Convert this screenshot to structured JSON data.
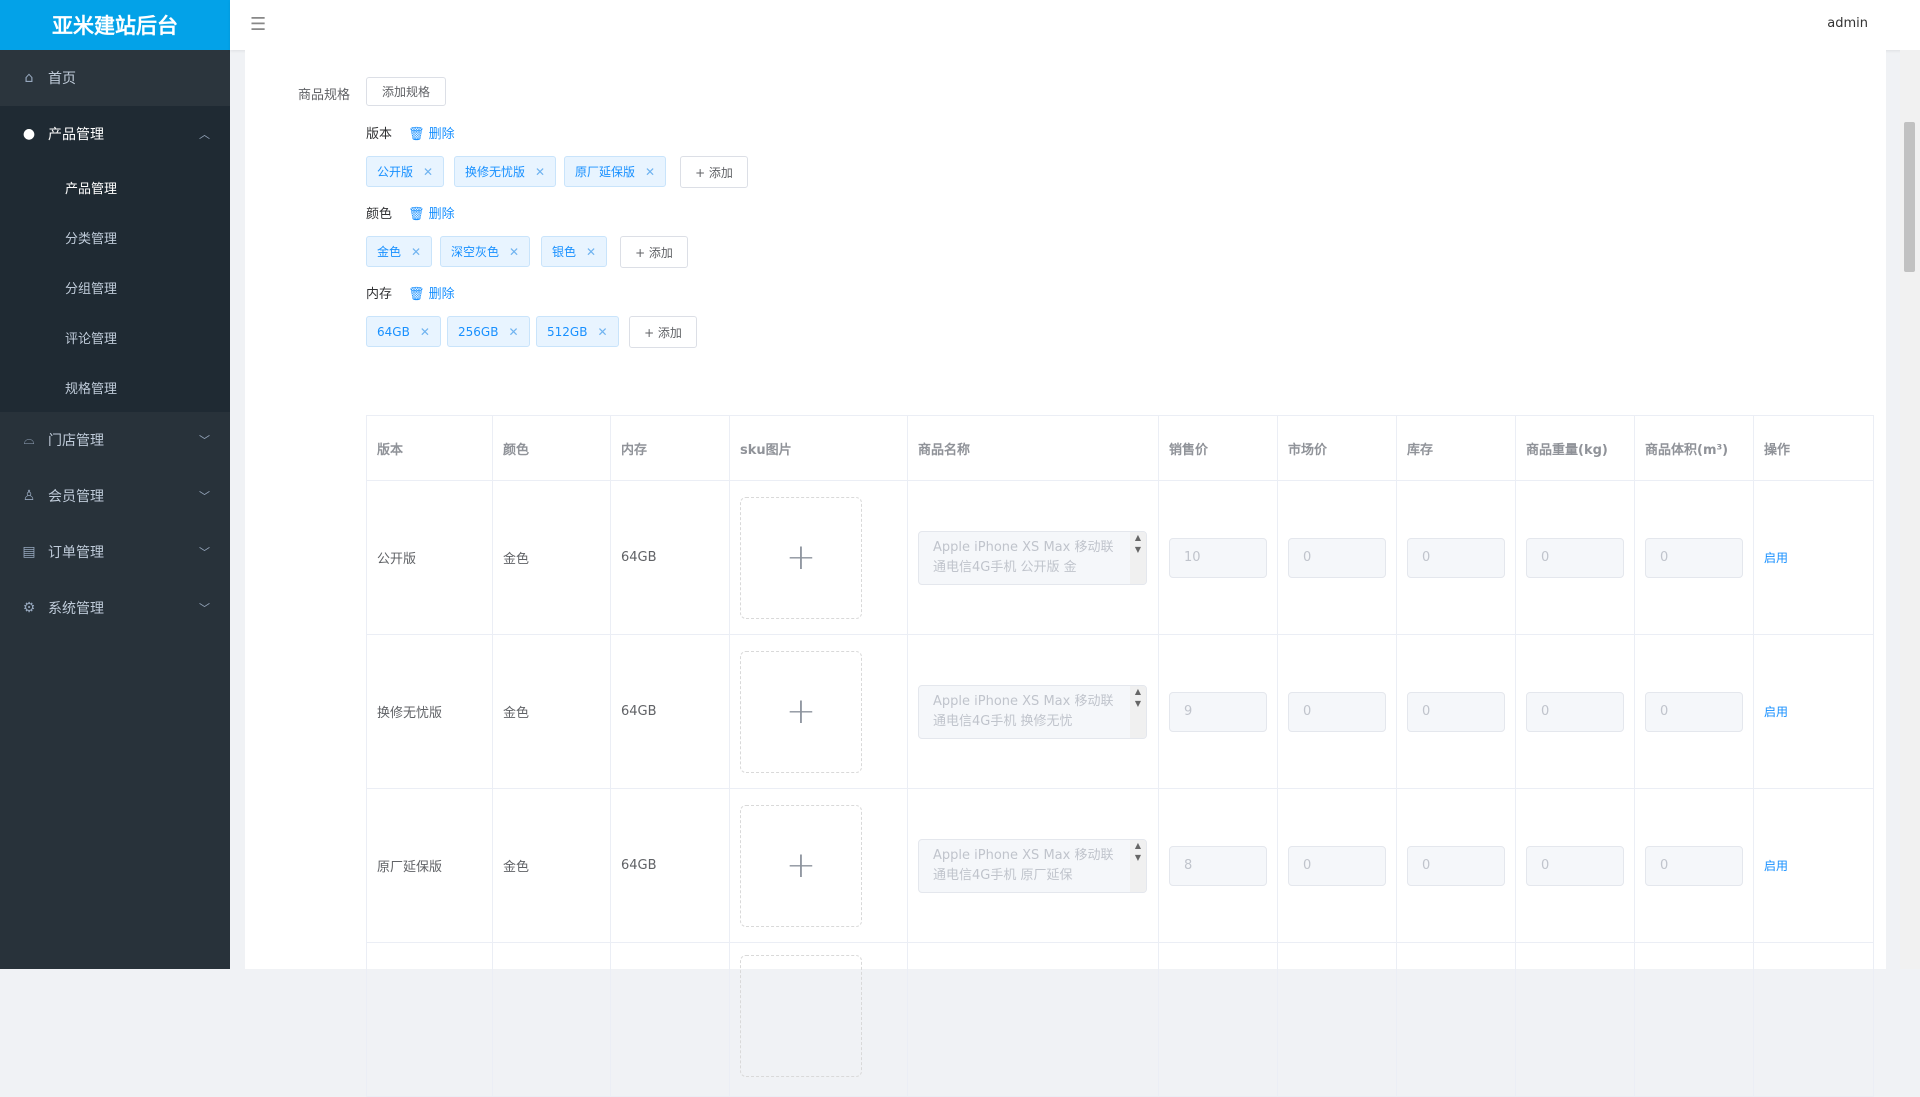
{
  "app": {
    "logo": "亚米建站后台",
    "user": "admin"
  },
  "sidebar": {
    "items": [
      {
        "label": "首页",
        "icon": "home-icon"
      },
      {
        "label": "产品管理",
        "icon": "user-icon",
        "expanded": true,
        "children": [
          "产品管理",
          "分类管理",
          "分组管理",
          "评论管理",
          "规格管理"
        ],
        "active_child": "产品管理"
      },
      {
        "label": "门店管理",
        "icon": "shop-icon"
      },
      {
        "label": "会员管理",
        "icon": "badge-icon"
      },
      {
        "label": "订单管理",
        "icon": "document-icon"
      },
      {
        "label": "系统管理",
        "icon": "gear-icon"
      }
    ]
  },
  "spec": {
    "label": "商品规格",
    "add_spec": "添加规格",
    "delete": "删除",
    "add": "+ 添加",
    "groups": [
      {
        "name": "版本",
        "values": [
          "公开版",
          "换修无忧版",
          "原厂延保版"
        ]
      },
      {
        "name": "颜色",
        "values": [
          "金色",
          "深空灰色",
          "银色"
        ]
      },
      {
        "name": "内存",
        "values": [
          "64GB",
          "256GB",
          "512GB"
        ]
      }
    ]
  },
  "table": {
    "headers": [
      "版本",
      "颜色",
      "内存",
      "sku图片",
      "商品名称",
      "销售价",
      "市场价",
      "库存",
      "商品重量(kg)",
      "商品体积(m³)",
      "操作"
    ],
    "rows": [
      {
        "version": "公开版",
        "color": "金色",
        "memory": "64GB",
        "name": "Apple iPhone XS Max 移动联通电信4G手机 公开版 金",
        "price": "10",
        "market": "0",
        "stock": "0",
        "weight": "0",
        "volume": "0",
        "action": "启用"
      },
      {
        "version": "换修无忧版",
        "color": "金色",
        "memory": "64GB",
        "name": "Apple iPhone XS Max 移动联通电信4G手机 换修无忧",
        "price": "9",
        "market": "0",
        "stock": "0",
        "weight": "0",
        "volume": "0",
        "action": "启用"
      },
      {
        "version": "原厂延保版",
        "color": "金色",
        "memory": "64GB",
        "name": "Apple iPhone XS Max 移动联通电信4G手机 原厂延保",
        "price": "8",
        "market": "0",
        "stock": "0",
        "weight": "0",
        "volume": "0",
        "action": "启用"
      }
    ]
  }
}
